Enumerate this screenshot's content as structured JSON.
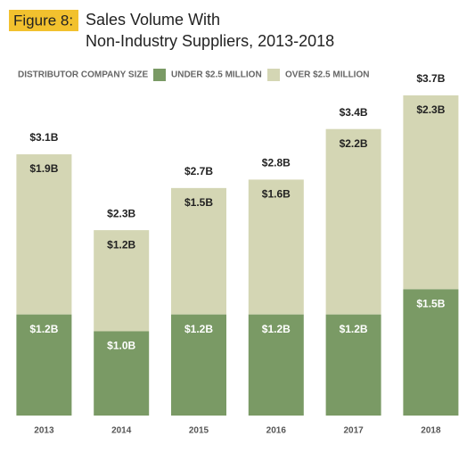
{
  "chart_data": {
    "type": "stacked-bar",
    "figure_label": "Figure 8:",
    "title": [
      "Sales Volume With",
      "Non-Industry Suppliers, 2013-2018"
    ],
    "legend_title": "DISTRIBUTOR COMPANY SIZE",
    "categories": [
      "2013",
      "2014",
      "2015",
      "2016",
      "2017",
      "2018"
    ],
    "series": [
      {
        "name": "UNDER $2.5 MILLION",
        "color": "#7a9a65",
        "values": [
          1.2,
          1.0,
          1.2,
          1.2,
          1.2,
          1.5
        ],
        "value_labels": [
          "$1.2B",
          "$1.0B",
          "$1.2B",
          "$1.2B",
          "$1.2B",
          "$1.5B"
        ]
      },
      {
        "name": "OVER $2.5 MILLION",
        "color": "#d4d6b4",
        "values": [
          1.9,
          1.2,
          1.5,
          1.6,
          2.2,
          2.3
        ],
        "value_labels": [
          "$1.9B",
          "$1.2B",
          "$1.5B",
          "$1.6B",
          "$2.2B",
          "$2.3B"
        ]
      }
    ],
    "totals": {
      "values": [
        3.1,
        2.3,
        2.7,
        2.8,
        3.4,
        3.7
      ],
      "value_labels": [
        "$3.1B",
        "$2.3B",
        "$2.7B",
        "$2.8B",
        "$3.4B",
        "$3.7B"
      ]
    }
  }
}
